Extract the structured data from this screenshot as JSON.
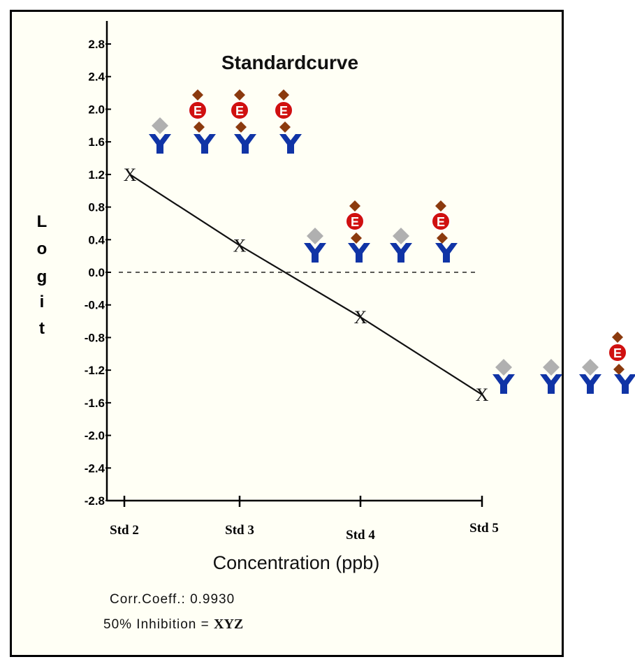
{
  "chart_data": {
    "type": "line",
    "title": "Standardcurve",
    "xlabel": "Concentration (ppb)",
    "ylabel": "Logit",
    "categories": [
      "Std 2",
      "Std 3",
      "Std 4",
      "Std 5"
    ],
    "series": [
      {
        "values": [
          1.2,
          0.33,
          -0.55,
          -1.5
        ],
        "marker": "X"
      }
    ],
    "ylim": [
      -2.8,
      2.8
    ],
    "yticks": [
      "2.8",
      "2.4",
      "2.0",
      "1.6",
      "1.2",
      "0.8",
      "0.4",
      "0.0",
      "-0.4",
      "-0.8",
      "-1.2",
      "-1.6",
      "-2.0",
      "-2.4",
      "-2.8"
    ],
    "reference_line": {
      "y": 0.0,
      "style": "dashed"
    },
    "grid": false,
    "annotations": {
      "corr_label": "Corr.Coeff.: 0.9930",
      "inhibition_label": "50% Inhibition = ",
      "inhibition_value": "XYZ"
    },
    "illustration": {
      "antibody_icon": "antibody-y-icon",
      "enzyme_label": "E",
      "colors": {
        "antibody": "#1034a6",
        "analyte": "#b0b0b0",
        "conjugate": "#8b3a0e",
        "enzyme": "#d01010"
      },
      "groups": [
        {
          "level": "Std 2",
          "antibodies": 4,
          "enzyme_bound": 3
        },
        {
          "level": "Std 3",
          "antibodies": 4,
          "enzyme_bound": 2
        },
        {
          "level": "Std 5",
          "antibodies": 4,
          "enzyme_bound": 1
        }
      ]
    }
  }
}
